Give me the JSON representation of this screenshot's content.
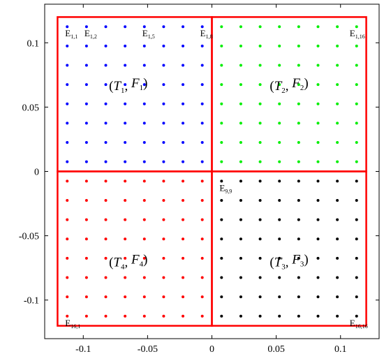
{
  "chart_data": {
    "type": "scatter",
    "title": "",
    "xlabel": "",
    "ylabel": "",
    "xlim": [
      -0.13,
      0.13
    ],
    "ylim": [
      -0.13,
      0.13
    ],
    "grid": false,
    "x_ticks": [
      -0.1,
      -0.05,
      0,
      0.05,
      0.1
    ],
    "x_tick_labels": [
      "-0.1",
      "-0.05",
      "0",
      "0.05",
      "0.1"
    ],
    "y_ticks": [
      0.1,
      0.05,
      0,
      -0.05,
      -0.1
    ],
    "y_tick_labels": [
      "0.1",
      "0.05",
      "0",
      "-0.05",
      "-0.1"
    ],
    "grid_points": {
      "rows": 16,
      "cols": 16,
      "start": -0.1125,
      "step": 0.015,
      "colors": {
        "upper_left": "#0000ff",
        "upper_right": "#00ee00",
        "lower_right": "#000000",
        "lower_left": "#ff0000"
      }
    },
    "regions": [
      {
        "name_main": "T",
        "name_sub": "1",
        "name_main2": "F",
        "name_sub2": "1",
        "x": [
          -0.12,
          0
        ],
        "y": [
          0,
          0.12
        ],
        "label_at": [
          -0.065,
          0.067
        ],
        "color": "#ff0000"
      },
      {
        "name_main": "T",
        "name_sub": "2",
        "name_main2": "F",
        "name_sub2": "2",
        "x": [
          0,
          0.12
        ],
        "y": [
          0,
          0.12
        ],
        "label_at": [
          0.06,
          0.067
        ],
        "color": "#ff0000"
      },
      {
        "name_main": "T",
        "name_sub": "3",
        "name_main2": "F",
        "name_sub2": "3",
        "x": [
          0,
          0.12
        ],
        "y": [
          -0.12,
          0
        ],
        "label_at": [
          0.06,
          -0.07
        ],
        "color": "#ff0000"
      },
      {
        "name_main": "T",
        "name_sub": "4",
        "name_main2": "F",
        "name_sub2": "4",
        "x": [
          -0.12,
          0
        ],
        "y": [
          -0.12,
          0
        ],
        "label_at": [
          -0.065,
          -0.07
        ],
        "color": "#ff0000"
      }
    ],
    "point_labels": [
      {
        "main": "E",
        "sub": "1,1",
        "x": -0.1125,
        "y": 0.1125
      },
      {
        "main": "E",
        "sub": "1,2",
        "x": -0.0975,
        "y": 0.1125
      },
      {
        "main": "E",
        "sub": "1,5",
        "x": -0.0525,
        "y": 0.1125
      },
      {
        "main": "E",
        "sub": "1,8",
        "x": -0.0075,
        "y": 0.1125
      },
      {
        "main": "E",
        "sub": "1,16",
        "x": 0.1125,
        "y": 0.1125
      },
      {
        "main": "E",
        "sub": "9,9",
        "x": 0.0075,
        "y": -0.0075
      },
      {
        "main": "E",
        "sub": "16,1",
        "x": -0.1125,
        "y": -0.1125
      },
      {
        "main": "E",
        "sub": "16,16",
        "x": 0.1125,
        "y": -0.1125
      }
    ]
  }
}
